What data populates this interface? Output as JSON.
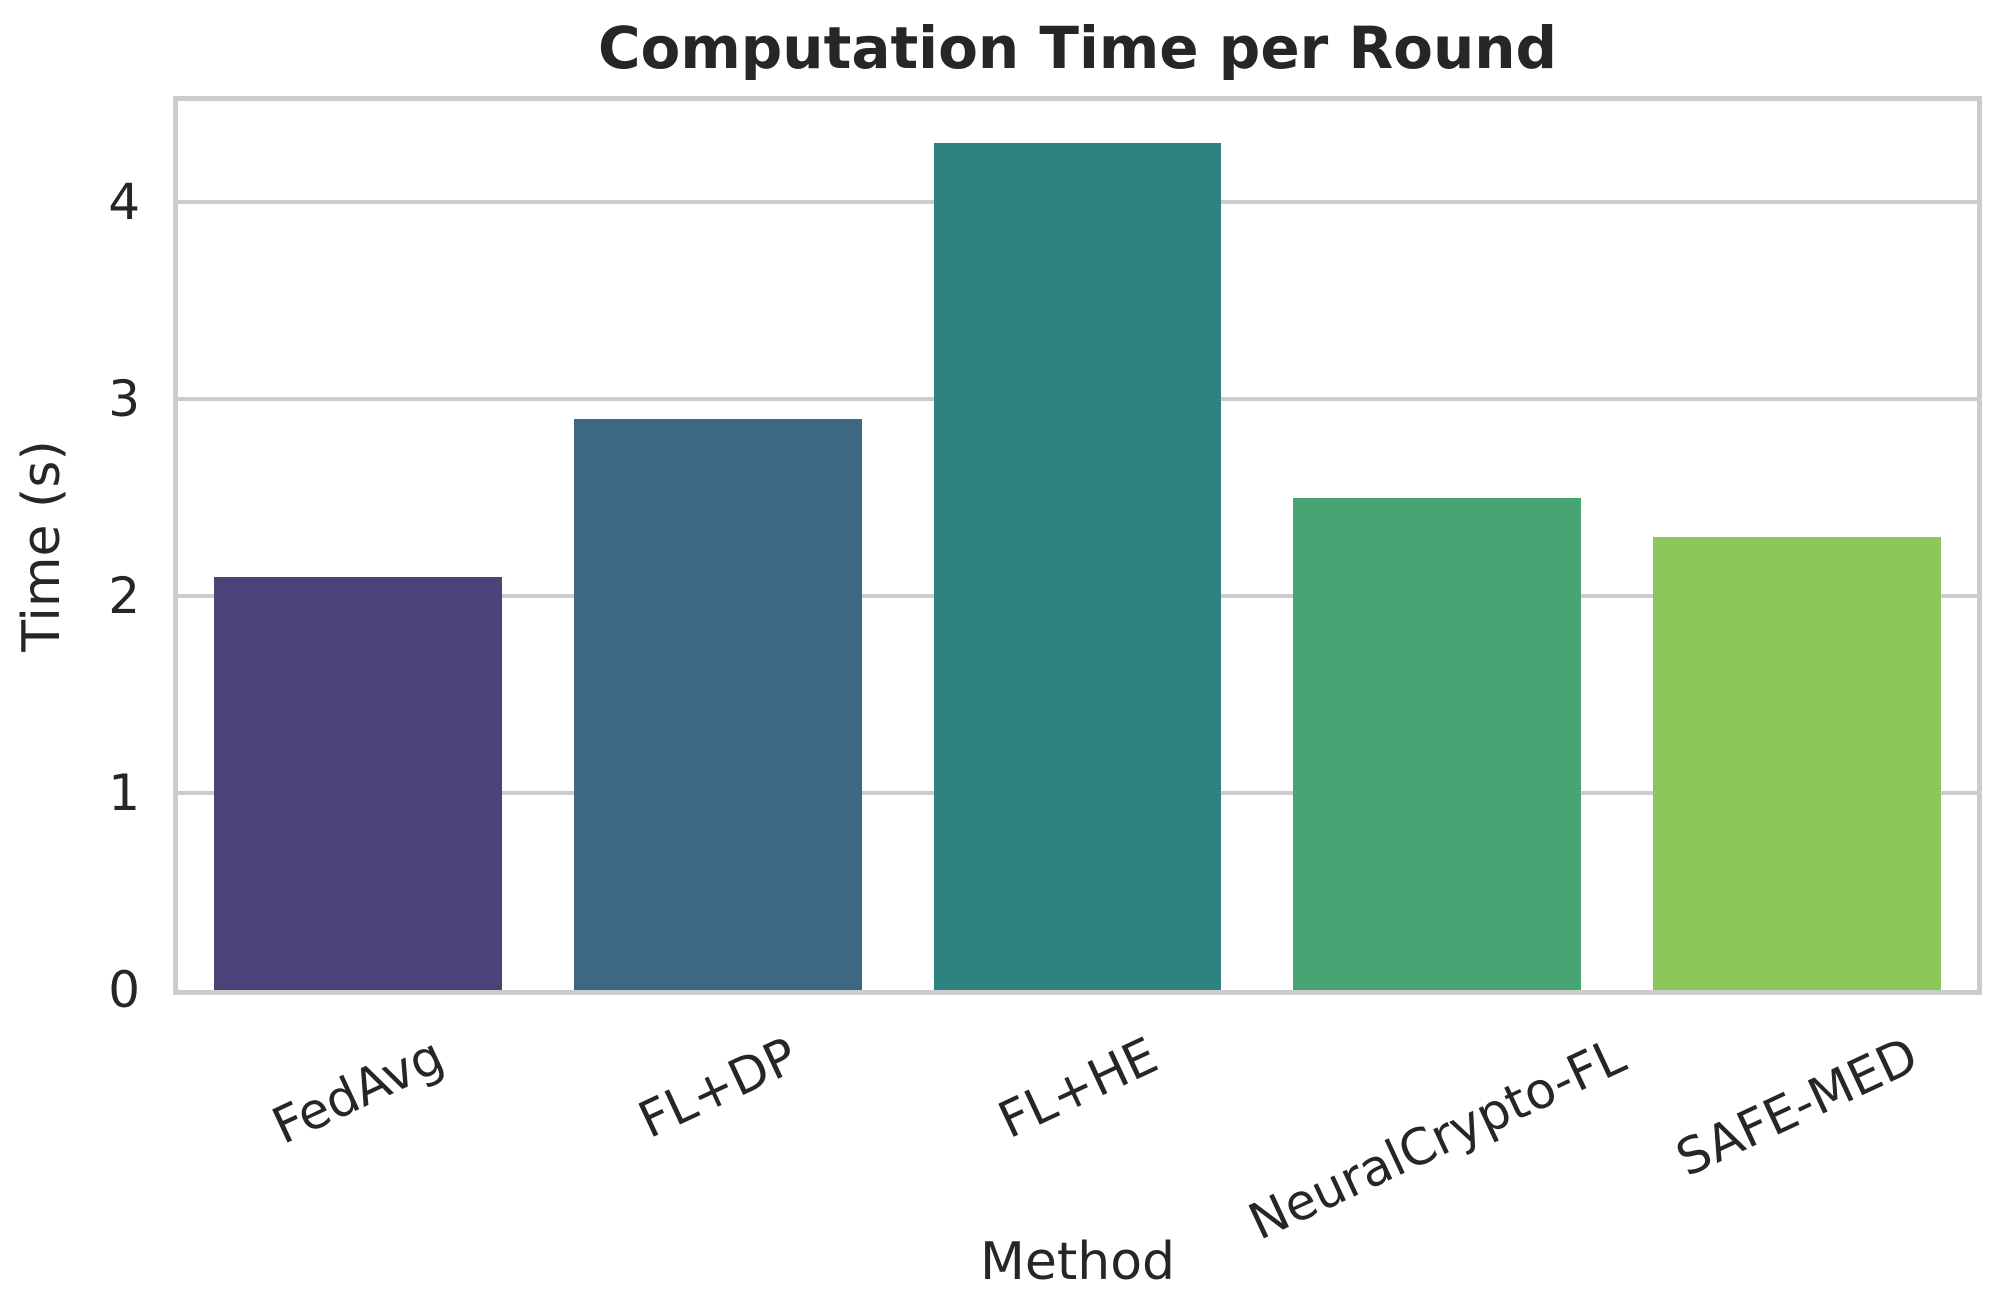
{
  "chart_data": {
    "type": "bar",
    "title": "Computation Time per Round",
    "xlabel": "Method",
    "ylabel": "Time (s)",
    "categories": [
      "FedAvg",
      "FL+DP",
      "FL+HE",
      "NeuralCrypto-FL",
      "SAFE-MED"
    ],
    "values": [
      2.1,
      2.9,
      4.3,
      2.5,
      2.3
    ],
    "bar_colors": [
      "#4a4379",
      "#3e6881",
      "#2e837f",
      "#46a573",
      "#8dc65b"
    ],
    "yticks": [
      0,
      1,
      2,
      3,
      4
    ],
    "ytick_labels": [
      "0",
      "1",
      "2",
      "3",
      "4"
    ],
    "ylim": [
      0,
      4.515
    ],
    "grid": "horizontal",
    "legend": "none",
    "xtick_rotation_deg": 25,
    "bar_width_fraction": 0.8,
    "colors": {
      "background": "#ffffff",
      "spine": "#cccccc",
      "gridline": "#cccccc",
      "text": "#262626"
    }
  }
}
